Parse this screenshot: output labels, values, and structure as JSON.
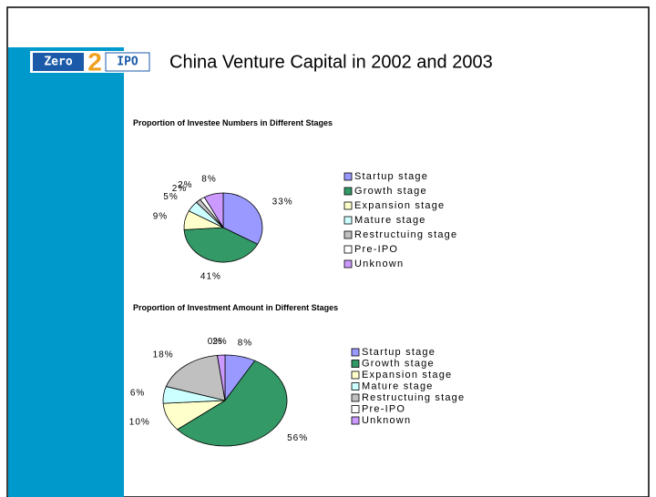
{
  "slide": {
    "title": "China Venture Capital in 2002 and 2003",
    "logo": [
      "Zero",
      "2",
      "IPO"
    ]
  },
  "chart_data": [
    {
      "type": "pie",
      "title": "Proportion of Investee Numbers in Different Stages",
      "categories": [
        "Startup stage",
        "Growth stage",
        "Expansion stage",
        "Mature stage",
        "Restructuing stage",
        "Pre-IPO",
        "Unknown"
      ],
      "values": [
        33,
        41,
        9,
        5,
        2,
        2,
        8
      ],
      "value_labels": [
        "33%",
        "41%",
        "9%",
        "5%",
        "2%",
        "2%",
        "8%"
      ],
      "colors": [
        "#9999ff",
        "#339966",
        "#ffffcc",
        "#ccffff",
        "#c0c0c0",
        "#ffffff",
        "#cc99ff"
      ]
    },
    {
      "type": "pie",
      "title": "Proportion of Investment Amount in Different Stages",
      "categories": [
        "Startup stage",
        "Growth stage",
        "Expansion stage",
        "Mature stage",
        "Restructuing stage",
        "Pre-IPO",
        "Unknown"
      ],
      "values": [
        8,
        56,
        10,
        6,
        18,
        0,
        2
      ],
      "value_labels": [
        "8%",
        "56%",
        "10%",
        "6%",
        "18%",
        "0%",
        "2%"
      ],
      "colors": [
        "#9999ff",
        "#339966",
        "#ffffcc",
        "#ccffff",
        "#c0c0c0",
        "#ffffff",
        "#cc99ff"
      ]
    }
  ]
}
